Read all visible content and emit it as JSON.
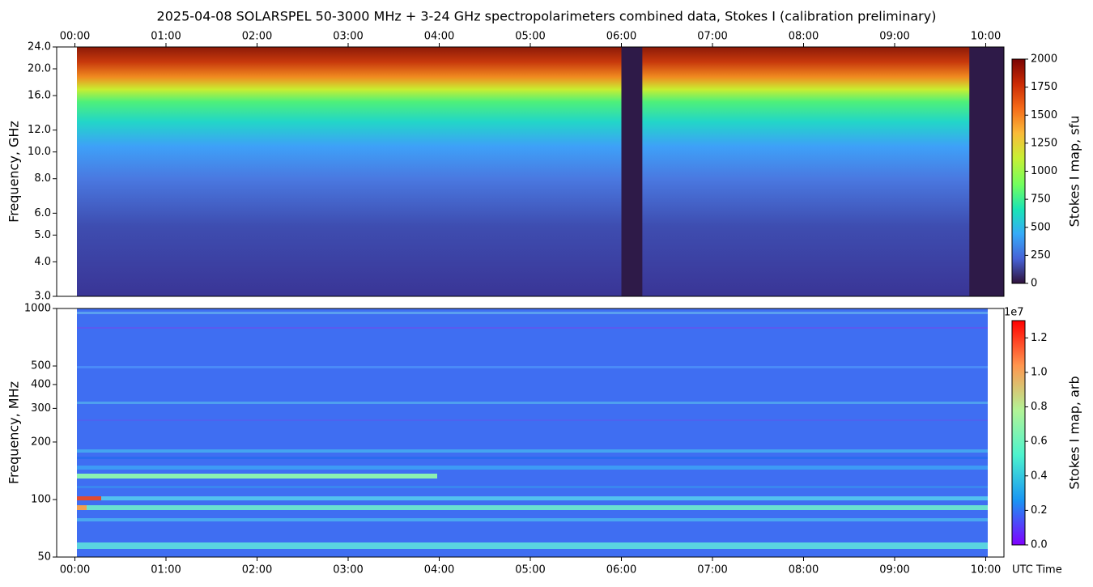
{
  "chart_data": [
    {
      "type": "heatmap",
      "title": "2025-04-08  SOLARSPEL  50-3000 MHz  +  3-24 GHz  spectropolarimeters combined data,  Stokes I  (calibration preliminary)",
      "ylabel": "Frequency, GHz",
      "yscale": "log",
      "ylim": [
        3,
        24
      ],
      "yticks": [
        {
          "value": 3,
          "label": "3.0"
        },
        {
          "value": 4,
          "label": "4.0"
        },
        {
          "value": 5,
          "label": "5.0"
        },
        {
          "value": 6,
          "label": "6.0"
        },
        {
          "value": 8,
          "label": "8.0"
        },
        {
          "value": 10,
          "label": "10.0"
        },
        {
          "value": 12,
          "label": "12.0"
        },
        {
          "value": 16,
          "label": "16.0"
        },
        {
          "value": 20,
          "label": "20.0"
        },
        {
          "value": 24,
          "label": "24.0"
        }
      ],
      "xlim": [
        -0.2,
        10.2
      ],
      "xtick_side": "top",
      "xticks": [
        {
          "value": 0,
          "label": "00:00"
        },
        {
          "value": 1,
          "label": "01:00"
        },
        {
          "value": 2,
          "label": "02:00"
        },
        {
          "value": 3,
          "label": "03:00"
        },
        {
          "value": 4,
          "label": "04:00"
        },
        {
          "value": 5,
          "label": "05:00"
        },
        {
          "value": 6,
          "label": "06:00"
        },
        {
          "value": 7,
          "label": "07:00"
        },
        {
          "value": 8,
          "label": "08:00"
        },
        {
          "value": 9,
          "label": "09:00"
        },
        {
          "value": 10,
          "label": "10:00"
        }
      ],
      "data_gaps": [
        [
          6.0,
          6.23
        ],
        [
          9.82,
          10.2
        ]
      ],
      "colormap": "turbo",
      "colorbar": {
        "label": "Stokes I map, sfu",
        "lim": [
          0,
          2000
        ],
        "ticks": [
          0,
          250,
          500,
          750,
          1000,
          1250,
          1500,
          1750,
          2000
        ]
      }
    },
    {
      "type": "heatmap",
      "ylabel": "Frequency, MHz",
      "yscale": "log",
      "ylim": [
        50,
        1000
      ],
      "yticks": [
        50,
        100,
        200,
        300,
        400,
        500,
        1000
      ],
      "xlim": [
        -0.2,
        10.2
      ],
      "xtick_side": "bottom",
      "xlabel": "UTC Time",
      "xticks": [
        {
          "value": 0,
          "label": "00:00"
        },
        {
          "value": 1,
          "label": "01:00"
        },
        {
          "value": 2,
          "label": "02:00"
        },
        {
          "value": 3,
          "label": "03:00"
        },
        {
          "value": 4,
          "label": "04:00"
        },
        {
          "value": 5,
          "label": "05:00"
        },
        {
          "value": 6,
          "label": "06:00"
        },
        {
          "value": 7,
          "label": "07:00"
        },
        {
          "value": 8,
          "label": "08:00"
        },
        {
          "value": 9,
          "label": "09:00"
        },
        {
          "value": 10,
          "label": "10:00"
        }
      ],
      "colormap": "rainbow",
      "colorbar": {
        "label": "Stokes I map, arb",
        "offset_label": "1e7",
        "lim": [
          0,
          1.3
        ],
        "ticks": [
          {
            "value": 0,
            "label": "0.0"
          },
          {
            "value": 0.2,
            "label": "0.2"
          },
          {
            "value": 0.4,
            "label": "0.4"
          },
          {
            "value": 0.6,
            "label": "0.6"
          },
          {
            "value": 0.8,
            "label": "0.8"
          },
          {
            "value": 1,
            "label": "1.0"
          },
          {
            "value": 1.2,
            "label": "1.2"
          }
        ]
      }
    }
  ]
}
